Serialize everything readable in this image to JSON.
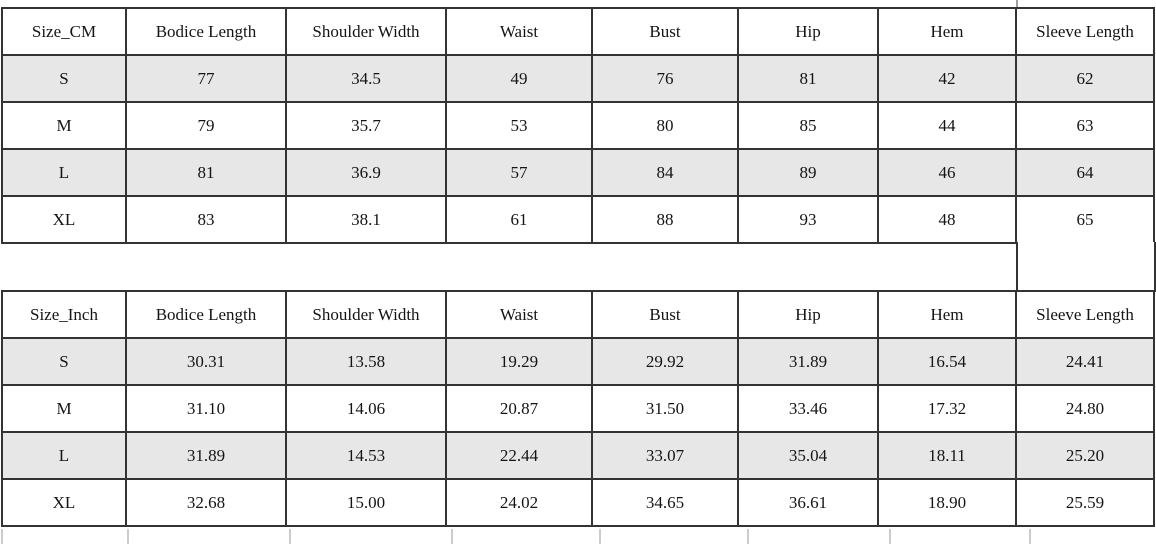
{
  "chart_data": [
    {
      "type": "table",
      "title": "Size_CM",
      "columns": [
        "Size_CM",
        "Bodice Length",
        "Shoulder Width",
        "Waist",
        "Bust",
        "Hip",
        "Hem",
        "Sleeve Length"
      ],
      "rows": [
        [
          "S",
          "77",
          "34.5",
          "49",
          "76",
          "81",
          "42",
          "62"
        ],
        [
          "M",
          "79",
          "35.7",
          "53",
          "80",
          "85",
          "44",
          "63"
        ],
        [
          "L",
          "81",
          "36.9",
          "57",
          "84",
          "89",
          "46",
          "64"
        ],
        [
          "XL",
          "83",
          "38.1",
          "61",
          "88",
          "93",
          "48",
          "65"
        ]
      ]
    },
    {
      "type": "table",
      "title": "Size_Inch",
      "columns": [
        "Size_Inch",
        "Bodice Length",
        "Shoulder Width",
        "Waist",
        "Bust",
        "Hip",
        "Hem",
        "Sleeve Length"
      ],
      "rows": [
        [
          "S",
          "30.31",
          "13.58",
          "19.29",
          "29.92",
          "31.89",
          "16.54",
          "24.41"
        ],
        [
          "M",
          "31.10",
          "14.06",
          "20.87",
          "31.50",
          "33.46",
          "17.32",
          "24.80"
        ],
        [
          "L",
          "31.89",
          "14.53",
          "22.44",
          "33.07",
          "35.04",
          "18.11",
          "25.20"
        ],
        [
          "XL",
          "32.68",
          "15.00",
          "24.02",
          "34.65",
          "36.61",
          "18.90",
          "25.59"
        ]
      ]
    }
  ],
  "style": {
    "border_color": "#333333",
    "shaded_row_color": "#e7e7e7",
    "background_color": "#ffffff",
    "text_color": "#141414",
    "shaded_row_indices": [
      0,
      2
    ]
  }
}
